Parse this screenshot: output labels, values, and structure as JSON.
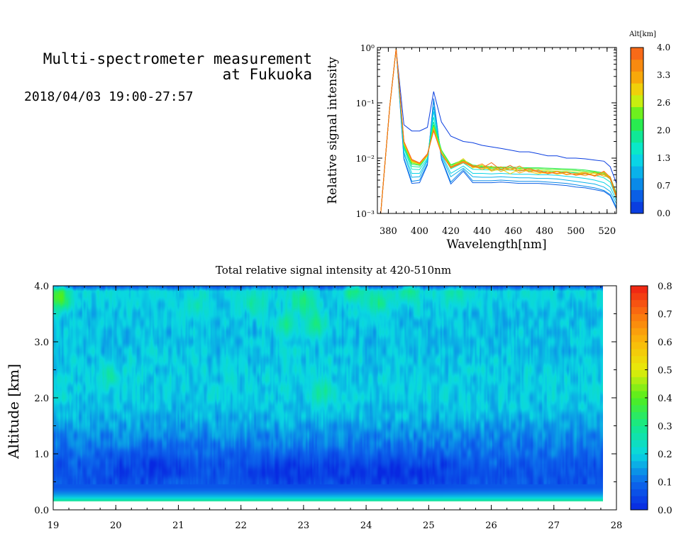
{
  "header": {
    "title_line1": "Multi-spectrometer measurement",
    "title_line2": "at Fukuoka",
    "datetime": "2018/04/03 19:00-27:57"
  },
  "chart_data": [
    {
      "type": "line",
      "xlabel": "Wavelength[nm]",
      "ylabel": "Relative signal intensity",
      "xlim": [
        373,
        526
      ],
      "ylim": [
        0.001,
        1
      ],
      "yscale": "log",
      "x_ticks": [
        "380",
        "400",
        "420",
        "440",
        "460",
        "480",
        "500",
        "520"
      ],
      "y_ticks": [
        "10⁻³",
        "10⁻²",
        "10⁻¹",
        "10⁰"
      ],
      "colorbar": {
        "label": "Alt[km]",
        "ticks": [
          "0.0",
          "0.7",
          "1.3",
          "2.0",
          "2.6",
          "3.3",
          "4.0"
        ],
        "colors": [
          "#0a3ee0",
          "#0a5fe6",
          "#0a8ae8",
          "#0ab2ea",
          "#0ad4e6",
          "#0ae8c8",
          "#10e896",
          "#28ec50",
          "#6ef01e",
          "#c8ee10",
          "#f0d00a",
          "#f8a80a",
          "#f88a10",
          "#f86a18"
        ]
      },
      "x": [
        375,
        381,
        385,
        390,
        395,
        400,
        405,
        409,
        414,
        420,
        428,
        434,
        440,
        446,
        452,
        458,
        464,
        470,
        476,
        482,
        488,
        494,
        500,
        506,
        512,
        518,
        522,
        526
      ],
      "series": [
        {
          "color": "#0a3ee0",
          "values": [
            0.0009,
            0.09,
            0.95,
            0.04,
            0.031,
            0.031,
            0.036,
            0.16,
            0.045,
            0.025,
            0.02,
            0.019,
            0.017,
            0.016,
            0.015,
            0.014,
            0.013,
            0.013,
            0.012,
            0.011,
            0.011,
            0.01,
            0.01,
            0.0097,
            0.0092,
            0.0088,
            0.007,
            0.0035
          ]
        },
        {
          "color": "#0a5fe6",
          "values": [
            0.0009,
            0.09,
            0.95,
            0.0095,
            0.0035,
            0.0036,
            0.0075,
            0.12,
            0.0095,
            0.0034,
            0.0058,
            0.0036,
            0.0036,
            0.0036,
            0.0037,
            0.0036,
            0.0035,
            0.0035,
            0.0035,
            0.0034,
            0.0033,
            0.0032,
            0.003,
            0.0029,
            0.0027,
            0.0025,
            0.0021,
            0.0012
          ]
        },
        {
          "color": "#0a8ae8",
          "values": [
            0.0009,
            0.09,
            0.95,
            0.01,
            0.0038,
            0.004,
            0.008,
            0.11,
            0.01,
            0.0037,
            0.0062,
            0.0039,
            0.0039,
            0.0039,
            0.004,
            0.0039,
            0.0038,
            0.0038,
            0.0038,
            0.0037,
            0.0036,
            0.0035,
            0.0033,
            0.0031,
            0.0029,
            0.0026,
            0.0022,
            0.0013
          ]
        },
        {
          "color": "#0ab2ea",
          "values": [
            0.0009,
            0.09,
            0.95,
            0.012,
            0.0045,
            0.0046,
            0.009,
            0.085,
            0.011,
            0.0046,
            0.0066,
            0.0046,
            0.0045,
            0.0045,
            0.0046,
            0.0045,
            0.0044,
            0.0044,
            0.0043,
            0.0043,
            0.0042,
            0.004,
            0.0038,
            0.0036,
            0.0034,
            0.003,
            0.0025,
            0.0015
          ]
        },
        {
          "color": "#0ad4e6",
          "values": [
            0.0009,
            0.09,
            0.95,
            0.013,
            0.0053,
            0.0053,
            0.0095,
            0.07,
            0.012,
            0.0053,
            0.0072,
            0.0053,
            0.0053,
            0.0052,
            0.0053,
            0.0052,
            0.0051,
            0.0051,
            0.005,
            0.005,
            0.0049,
            0.0047,
            0.0045,
            0.0043,
            0.004,
            0.0036,
            0.003,
            0.0017
          ]
        },
        {
          "color": "#0ae8c8",
          "values": [
            0.0009,
            0.09,
            0.95,
            0.015,
            0.0063,
            0.0062,
            0.01,
            0.055,
            0.013,
            0.0064,
            0.0082,
            0.0063,
            0.0062,
            0.0061,
            0.0061,
            0.0061,
            0.006,
            0.0059,
            0.0059,
            0.0058,
            0.0057,
            0.0056,
            0.0054,
            0.0052,
            0.0049,
            0.0044,
            0.0037,
            0.0019
          ]
        },
        {
          "color": "#10e896",
          "values": [
            0.0009,
            0.09,
            0.95,
            0.016,
            0.0071,
            0.0069,
            0.011,
            0.045,
            0.014,
            0.0071,
            0.009,
            0.007,
            0.0068,
            0.0066,
            0.0066,
            0.0066,
            0.0065,
            0.0064,
            0.0064,
            0.0063,
            0.0062,
            0.0061,
            0.006,
            0.0058,
            0.0055,
            0.005,
            0.0042,
            0.0021
          ]
        },
        {
          "color": "#28ec50",
          "values": [
            0.0009,
            0.09,
            0.95,
            0.017,
            0.0078,
            0.0074,
            0.011,
            0.04,
            0.014,
            0.0076,
            0.0093,
            0.0075,
            0.0072,
            0.007,
            0.0069,
            0.0069,
            0.0068,
            0.0067,
            0.0067,
            0.0066,
            0.0065,
            0.0064,
            0.0063,
            0.0061,
            0.0058,
            0.0054,
            0.0046,
            0.0023
          ]
        },
        {
          "color": "#6ef01e",
          "values": [
            0.0009,
            0.09,
            0.95,
            0.018,
            0.0082,
            0.0076,
            0.011,
            0.038,
            0.013,
            0.0074,
            0.0091,
            0.0073,
            0.007,
            0.0068,
            0.0067,
            0.0066,
            0.0065,
            0.0065,
            0.0064,
            0.0063,
            0.0062,
            0.0061,
            0.006,
            0.0058,
            0.0056,
            0.0052,
            0.0045,
            0.0022
          ]
        },
        {
          "color": "#c8ee10",
          "values": [
            0.0009,
            0.09,
            0.95,
            0.018,
            0.0085,
            0.0078,
            0.011,
            0.035,
            0.013,
            0.007,
            0.0088,
            0.0069,
            0.0066,
            0.0064,
            0.0063,
            0.0062,
            0.0061,
            0.006,
            0.006,
            0.0059,
            0.0058,
            0.0057,
            0.0056,
            0.0055,
            0.0053,
            0.005,
            0.0043,
            0.0021
          ]
        },
        {
          "color": "#f0d00a",
          "values": [
            0.0009,
            0.09,
            0.95,
            0.019,
            0.0088,
            0.0079,
            0.011,
            0.034,
            0.012,
            0.0068,
            0.0098,
            0.0066,
            0.0075,
            0.0058,
            0.0064,
            0.0052,
            0.0063,
            0.0057,
            0.0052,
            0.0058,
            0.0051,
            0.0055,
            0.005,
            0.0054,
            0.0049,
            0.0056,
            0.0044,
            0.002
          ]
        },
        {
          "color": "#f8a80a",
          "values": [
            0.0009,
            0.09,
            0.95,
            0.019,
            0.009,
            0.0081,
            0.0115,
            0.033,
            0.012,
            0.0066,
            0.0088,
            0.0074,
            0.0062,
            0.0072,
            0.0057,
            0.0067,
            0.0054,
            0.0062,
            0.0055,
            0.0053,
            0.0058,
            0.005,
            0.0053,
            0.0048,
            0.0055,
            0.0047,
            0.0046,
            0.002
          ]
        },
        {
          "color": "#f88a10",
          "values": [
            0.0009,
            0.09,
            0.95,
            0.02,
            0.0092,
            0.008,
            0.0115,
            0.032,
            0.012,
            0.0067,
            0.0083,
            0.0069,
            0.0079,
            0.006,
            0.007,
            0.0061,
            0.0072,
            0.0056,
            0.0061,
            0.0052,
            0.0057,
            0.0051,
            0.0052,
            0.0055,
            0.0047,
            0.0052,
            0.0042,
            0.0019
          ]
        },
        {
          "color": "#f86a18",
          "values": [
            0.0009,
            0.09,
            0.95,
            0.02,
            0.0095,
            0.0082,
            0.012,
            0.031,
            0.012,
            0.0069,
            0.0086,
            0.0072,
            0.0066,
            0.0083,
            0.0061,
            0.0074,
            0.0058,
            0.0065,
            0.0057,
            0.0055,
            0.0053,
            0.0056,
            0.0049,
            0.0052,
            0.0048,
            0.0058,
            0.0045,
            0.0021
          ]
        }
      ]
    },
    {
      "type": "heatmap",
      "title": "Total relative signal intensity at 420-510nm",
      "xlabel": "",
      "ylabel": "Altitude [km]",
      "xlim": [
        19,
        28
      ],
      "ylim": [
        0,
        4
      ],
      "x_ticks": [
        "19",
        "20",
        "21",
        "22",
        "23",
        "24",
        "25",
        "26",
        "27",
        "28"
      ],
      "y_ticks": [
        "0.0",
        "1.0",
        "2.0",
        "3.0",
        "4.0"
      ],
      "data_x_range": [
        19,
        27.95
      ],
      "data_y_range": [
        0.15,
        4.0
      ],
      "colorbar": {
        "ticks": [
          "0.0",
          "0.1",
          "0.2",
          "0.3",
          "0.4",
          "0.5",
          "0.6",
          "0.7",
          "0.8"
        ],
        "vmin": 0,
        "vmax": 0.8
      },
      "profile": [
        {
          "alt": 0.15,
          "value": 0.3
        },
        {
          "alt": 0.22,
          "value": 0.19
        },
        {
          "alt": 0.28,
          "value": 0.14
        },
        {
          "alt": 0.33,
          "value": 0.11
        },
        {
          "alt": 0.4,
          "value": 0.075
        },
        {
          "alt": 0.6,
          "value": 0.07
        },
        {
          "alt": 0.8,
          "value": 0.08
        },
        {
          "alt": 1.0,
          "value": 0.1
        },
        {
          "alt": 1.2,
          "value": 0.12
        },
        {
          "alt": 1.4,
          "value": 0.14
        },
        {
          "alt": 1.6,
          "value": 0.16
        },
        {
          "alt": 1.8,
          "value": 0.18
        },
        {
          "alt": 2.0,
          "value": 0.19
        },
        {
          "alt": 2.5,
          "value": 0.19
        },
        {
          "alt": 3.0,
          "value": 0.18
        },
        {
          "alt": 3.5,
          "value": 0.18
        },
        {
          "alt": 3.9,
          "value": 0.2
        },
        {
          "alt": 4.0,
          "value": 0.06
        }
      ],
      "hotspots": [
        {
          "hour": 19.1,
          "alt": 3.8,
          "value": 0.4
        },
        {
          "hour": 19.9,
          "alt": 2.4,
          "value": 0.27
        },
        {
          "hour": 21.3,
          "alt": 3.6,
          "value": 0.26
        },
        {
          "hour": 22.2,
          "alt": 3.7,
          "value": 0.28
        },
        {
          "hour": 22.7,
          "alt": 3.3,
          "value": 0.3
        },
        {
          "hour": 23.0,
          "alt": 3.7,
          "value": 0.33
        },
        {
          "hour": 23.2,
          "alt": 3.3,
          "value": 0.32
        },
        {
          "hour": 23.3,
          "alt": 2.1,
          "value": 0.28
        },
        {
          "hour": 23.8,
          "alt": 3.9,
          "value": 0.32
        },
        {
          "hour": 24.2,
          "alt": 3.7,
          "value": 0.3
        },
        {
          "hour": 24.7,
          "alt": 3.9,
          "value": 0.3
        },
        {
          "hour": 25.4,
          "alt": 3.9,
          "value": 0.27
        }
      ],
      "lows": [
        {
          "hour": 23.0,
          "alt": 0.7,
          "value": 0.05
        },
        {
          "hour": 24.7,
          "alt": 0.7,
          "value": 0.05
        },
        {
          "hour": 20.5,
          "alt": 0.8,
          "value": 0.06
        }
      ]
    }
  ]
}
